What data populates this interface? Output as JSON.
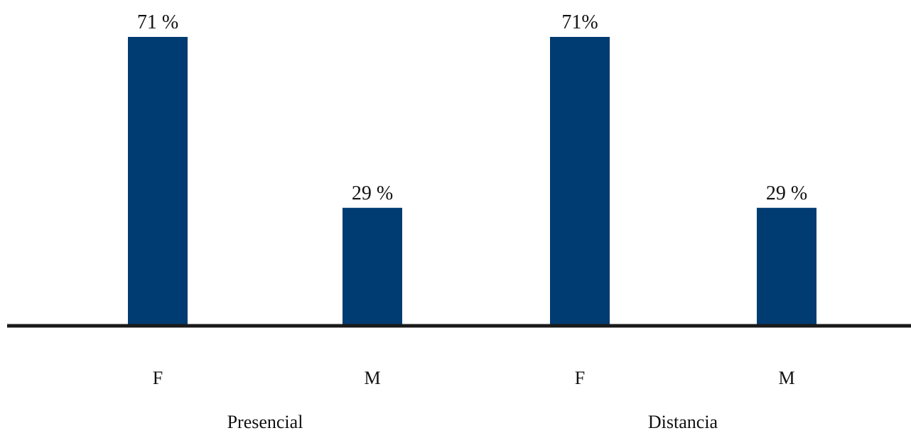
{
  "chart_data": {
    "type": "bar",
    "title": "",
    "xlabel": "",
    "ylabel": "",
    "ylim": [
      0,
      80
    ],
    "grid": false,
    "legend": "none",
    "bar_color": "#003B71",
    "axis_color": "#1a1a1a",
    "groups": [
      {
        "label": "Presencial",
        "bars": [
          {
            "category": "F",
            "value": 71,
            "label": "71 %"
          },
          {
            "category": "M",
            "value": 29,
            "label": "29 %"
          }
        ]
      },
      {
        "label": "Distancia",
        "bars": [
          {
            "category": "F",
            "value": 71,
            "label": "71%"
          },
          {
            "category": "M",
            "value": 29,
            "label": "29 %"
          }
        ]
      }
    ]
  }
}
